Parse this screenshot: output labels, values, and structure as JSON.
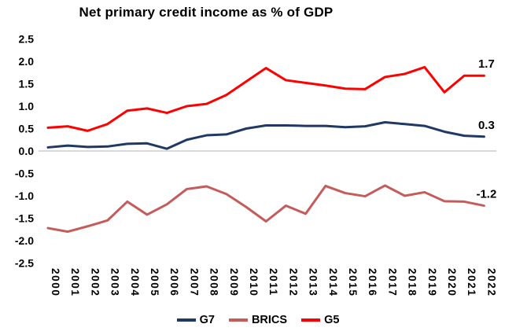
{
  "title": "Net primary credit income as % of GDP",
  "colors": {
    "g7_line": "#1F3864",
    "brics_line": "#C65B5B",
    "g5_line": "#FF0000",
    "zero_axis_line": "#D9D9D9",
    "text": "#000000",
    "background": "#FFFFFF"
  },
  "chart_data": {
    "type": "line",
    "title": "Net primary credit income as % of GDP",
    "x": [
      2000,
      2001,
      2002,
      2003,
      2004,
      2005,
      2006,
      2007,
      2008,
      2009,
      2010,
      2011,
      2012,
      2013,
      2014,
      2015,
      2016,
      2017,
      2018,
      2019,
      2020,
      2021,
      2022
    ],
    "series": [
      {
        "name": "G7",
        "color": "#1F3864",
        "end_label": "0.3",
        "values": [
          0.08,
          0.12,
          0.09,
          0.1,
          0.16,
          0.17,
          0.05,
          0.25,
          0.35,
          0.37,
          0.5,
          0.57,
          0.57,
          0.56,
          0.56,
          0.53,
          0.55,
          0.64,
          0.6,
          0.56,
          0.43,
          0.34,
          0.32
        ]
      },
      {
        "name": "BRICS",
        "color": "#C65B5B",
        "end_label": "-1.2",
        "values": [
          -1.72,
          -1.8,
          -1.68,
          -1.55,
          -1.13,
          -1.42,
          -1.19,
          -0.85,
          -0.79,
          -0.96,
          -1.25,
          -1.57,
          -1.22,
          -1.4,
          -0.78,
          -0.94,
          -1.01,
          -0.77,
          -1.0,
          -0.92,
          -1.12,
          -1.13,
          -1.22
        ]
      },
      {
        "name": "G5",
        "color": "#FF0000",
        "end_label": "1.7",
        "values": [
          0.52,
          0.55,
          0.45,
          0.6,
          0.9,
          0.95,
          0.85,
          1.0,
          1.05,
          1.25,
          1.55,
          1.85,
          1.58,
          1.52,
          1.46,
          1.39,
          1.38,
          1.65,
          1.72,
          1.87,
          1.31,
          1.68,
          1.68
        ]
      }
    ],
    "ylim": [
      -2.5,
      2.5
    ],
    "yticks": [
      "2.5",
      "2.0",
      "1.5",
      "1.0",
      "0.5",
      "0.0",
      "-0.5",
      "-1.0",
      "-1.5",
      "-2.0",
      "-2.5"
    ],
    "grid": "zero-line-only",
    "legend_position": "bottom",
    "xlabel": "",
    "ylabel": ""
  }
}
